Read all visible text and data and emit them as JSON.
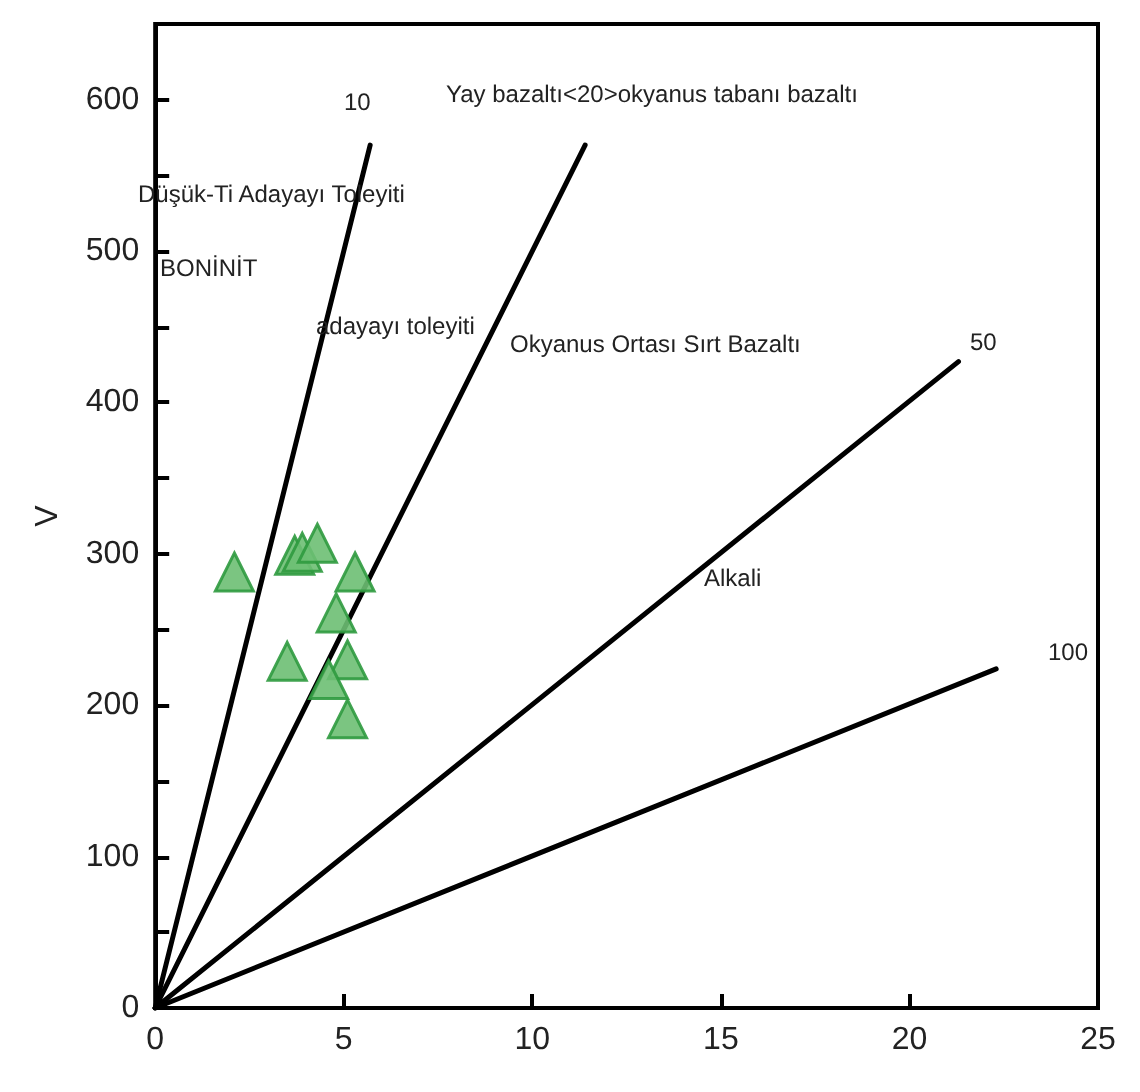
{
  "chart_data": {
    "type": "scatter",
    "ylabel": "V",
    "xlim": [
      0,
      25
    ],
    "xticks": [
      0,
      5,
      10,
      15,
      20,
      25
    ],
    "ylim": [
      0,
      650
    ],
    "yticks": [
      0,
      {
        "value": 50,
        "label": null
      },
      100,
      {
        "value": 150,
        "label": null
      },
      200,
      {
        "value": 250,
        "label": null
      },
      300,
      {
        "value": 350,
        "label": null
      },
      400,
      {
        "value": 450,
        "label": null
      },
      500,
      {
        "value": 550,
        "label": null
      },
      600
    ],
    "grid": false,
    "series": [
      {
        "type": "line",
        "color": "#000000",
        "x": [
          0,
          5.7
        ],
        "values": [
          0,
          570
        ]
      },
      {
        "type": "line",
        "color": "#000000",
        "x": [
          0,
          11.4
        ],
        "values": [
          0,
          570
        ]
      },
      {
        "type": "line",
        "color": "#000000",
        "x": [
          0,
          21.3
        ],
        "values": [
          0,
          427
        ]
      },
      {
        "type": "line",
        "color": "#000000",
        "x": [
          0,
          22.3
        ],
        "values": [
          0,
          224
        ]
      },
      {
        "marker": "triangle",
        "color": "#6dbf73",
        "x": [
          2.1,
          3.7,
          3.9,
          4.3,
          5.3,
          4.8,
          5.1,
          3.5,
          4.6,
          5.1
        ],
        "values": [
          288,
          299,
          301,
          307,
          288,
          261,
          230,
          229,
          217,
          191
        ]
      }
    ],
    "annotations": [
      "10",
      "Yay bazaltı<20>okyanus tabanı bazaltı",
      "Düşük-Ti Adayayı Toleyiti",
      "BONİNİT",
      "adayayı toleyiti",
      "Okyanus Ortası Sırt Bazaltı",
      "50",
      "Alkali",
      "100"
    ]
  }
}
